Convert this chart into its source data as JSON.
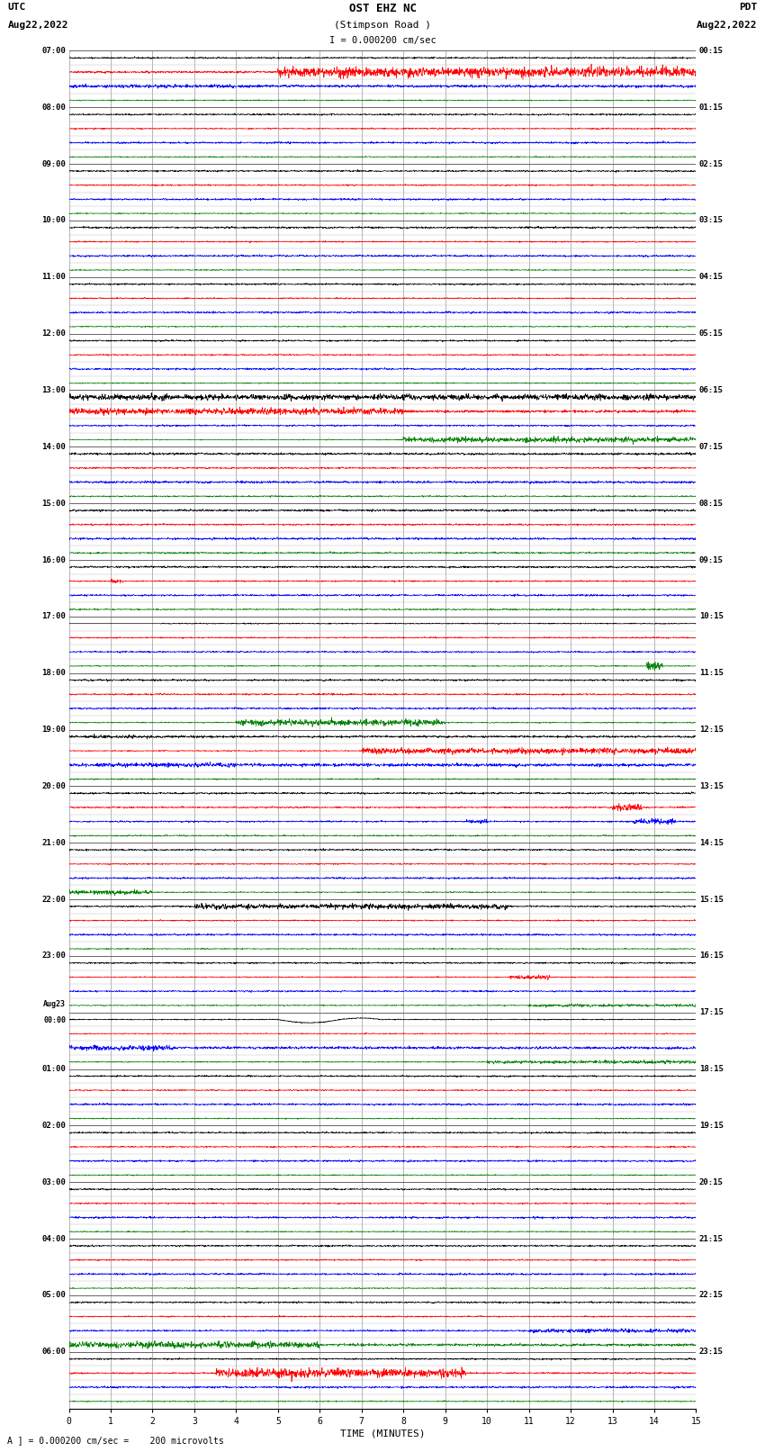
{
  "title_line1": "OST EHZ NC",
  "title_line2": "(Stimpson Road )",
  "title_line3": "I = 0.000200 cm/sec",
  "left_header_line1": "UTC",
  "left_header_line2": "Aug22,2022",
  "right_header_line1": "PDT",
  "right_header_line2": "Aug22,2022",
  "xlabel": "TIME (MINUTES)",
  "footer": "A ] = 0.000200 cm/sec =    200 microvolts",
  "bg_color": "#ffffff",
  "grid_color": "#888888",
  "trace_colors": [
    "black",
    "red",
    "blue",
    "green"
  ],
  "xmin": 0,
  "xmax": 15,
  "xticks": [
    0,
    1,
    2,
    3,
    4,
    5,
    6,
    7,
    8,
    9,
    10,
    11,
    12,
    13,
    14,
    15
  ],
  "utc_labels": [
    "07:00",
    "08:00",
    "09:00",
    "10:00",
    "11:00",
    "12:00",
    "13:00",
    "14:00",
    "15:00",
    "16:00",
    "17:00",
    "18:00",
    "19:00",
    "20:00",
    "21:00",
    "22:00",
    "23:00",
    "Aug23\n00:00",
    "01:00",
    "02:00",
    "03:00",
    "04:00",
    "05:00",
    "06:00"
  ],
  "pdt_labels": [
    "00:15",
    "01:15",
    "02:15",
    "03:15",
    "04:15",
    "05:15",
    "06:15",
    "07:15",
    "08:15",
    "09:15",
    "10:15",
    "11:15",
    "12:15",
    "13:15",
    "14:15",
    "15:15",
    "16:15",
    "17:15",
    "18:15",
    "19:15",
    "20:15",
    "21:15",
    "22:15",
    "23:15"
  ],
  "num_hours": 24,
  "traces_per_hour": 4
}
